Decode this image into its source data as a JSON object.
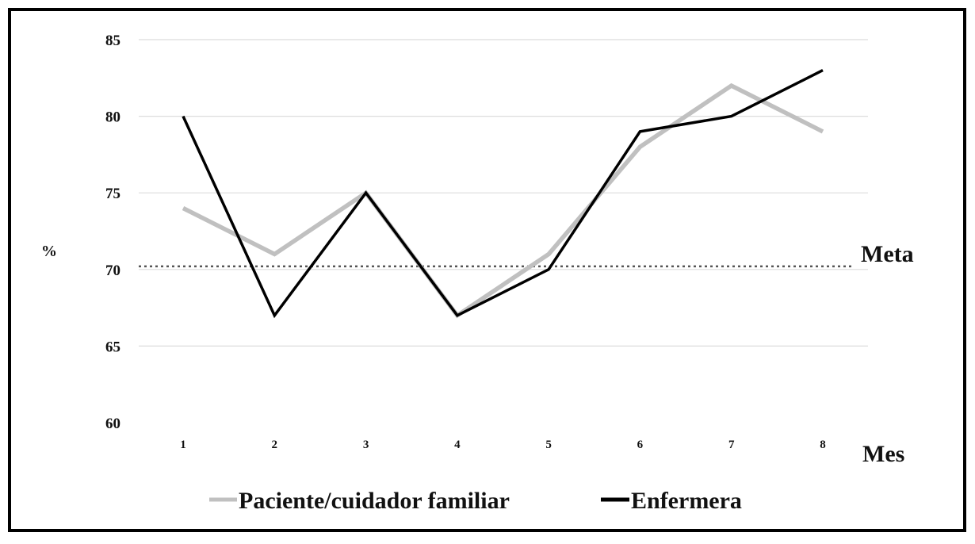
{
  "chart_data": {
    "type": "line",
    "title": "",
    "xlabel": "Mes",
    "ylabel": "%",
    "categories": [
      "1",
      "2",
      "3",
      "4",
      "5",
      "6",
      "7",
      "8"
    ],
    "ylim": [
      60,
      85
    ],
    "yticks": [
      "85",
      "80",
      "75",
      "70",
      "65",
      "60"
    ],
    "grid": true,
    "legend_position": "bottom",
    "series": [
      {
        "name": "Paciente/cuidador familiar",
        "color": "#c0c0c0",
        "values": [
          74,
          71,
          75,
          67,
          71,
          78,
          82,
          79
        ]
      },
      {
        "name": "Enfermera",
        "color": "#000000",
        "values": [
          80,
          67,
          75,
          67,
          70,
          79,
          80,
          83
        ]
      }
    ],
    "reference_line": {
      "label": "Meta",
      "value": 70.2,
      "style": "dotted"
    }
  }
}
